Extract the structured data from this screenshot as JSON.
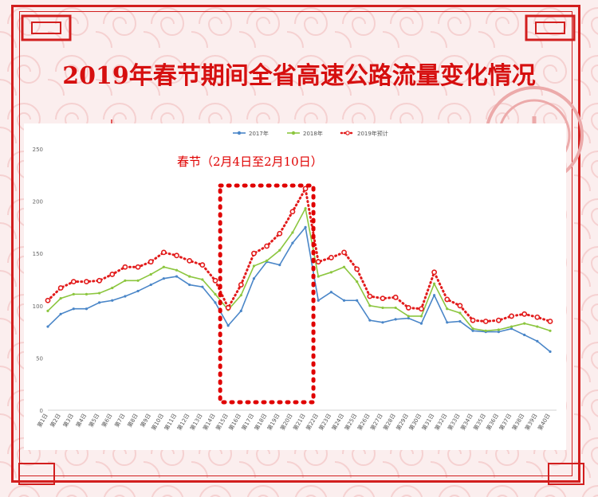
{
  "title": "2019年春节期间全省高速公路流量变化情况",
  "annotation": "春节（2月4日至2月10日）",
  "colors": {
    "s2017": "#4a86c8",
    "s2018": "#8cc63f",
    "s2019": "#e21b1b",
    "frame": "#d21e1e"
  },
  "chart_data": {
    "type": "line",
    "x": [
      "第1日",
      "第2日",
      "第3日",
      "第4日",
      "第5日",
      "第6日",
      "第7日",
      "第8日",
      "第9日",
      "第10日",
      "第11日",
      "第12日",
      "第13日",
      "第14日",
      "第15日",
      "第16日",
      "第17日",
      "第18日",
      "第19日",
      "第20日",
      "第21日",
      "第22日",
      "第23日",
      "第24日",
      "第25日",
      "第26日",
      "第27日",
      "第28日",
      "第29日",
      "第30日",
      "第31日",
      "第32日",
      "第33日",
      "第34日",
      "第35日",
      "第36日",
      "第37日",
      "第38日",
      "第39日",
      "第40日"
    ],
    "ylim": [
      0,
      250
    ],
    "yticks": [
      0,
      50,
      100,
      150,
      200,
      250
    ],
    "legend_position": "top",
    "grid": false,
    "series": [
      {
        "name": "2017年",
        "values": [
          80,
          92,
          97,
          97,
          103,
          105,
          109,
          114,
          120,
          126,
          128,
          120,
          118,
          103,
          81,
          95,
          126,
          142,
          139,
          160,
          175,
          105,
          113,
          105,
          105,
          86,
          84,
          87,
          88,
          83,
          110,
          84,
          85,
          76,
          75,
          75,
          78,
          72,
          66,
          56
        ]
      },
      {
        "name": "2018年",
        "values": [
          95,
          107,
          111,
          111,
          112,
          117,
          124,
          124,
          130,
          137,
          134,
          128,
          125,
          111,
          96,
          110,
          138,
          143,
          153,
          170,
          193,
          128,
          132,
          137,
          123,
          100,
          98,
          98,
          90,
          90,
          121,
          97,
          93,
          78,
          76,
          77,
          80,
          83,
          80,
          76
        ]
      },
      {
        "name": "2019年预计",
        "values": [
          105,
          117,
          123,
          123,
          124,
          130,
          137,
          137,
          142,
          151,
          148,
          143,
          139,
          124,
          98,
          120,
          150,
          157,
          169,
          190,
          212,
          142,
          146,
          151,
          135,
          109,
          107,
          108,
          98,
          97,
          132,
          106,
          100,
          86,
          85,
          86,
          90,
          92,
          89,
          85
        ]
      }
    ],
    "highlight": {
      "from": "第15日",
      "to": "第21日",
      "label": "春节（2月4日至2月10日）"
    }
  }
}
